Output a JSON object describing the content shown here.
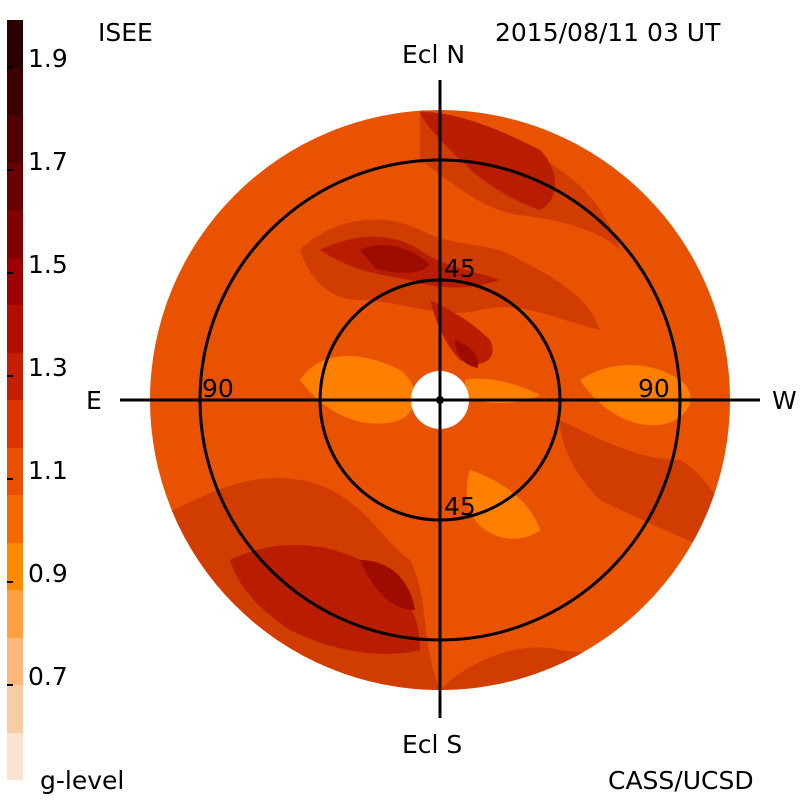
{
  "header": {
    "observatory": "ISEE",
    "timestamp": "2015/08/11 03 UT",
    "credit": "CASS/UCSD",
    "colorbar_title": "g-level"
  },
  "axes": {
    "north": "Ecl N",
    "south": "Ecl S",
    "east": "E",
    "west": "W",
    "ring_inner_top": "45",
    "ring_inner_bottom": "45",
    "ring_outer_left": "90",
    "ring_outer_right": "90"
  },
  "colorbar": {
    "labels": [
      "1.9",
      "1.7",
      "1.5",
      "1.3",
      "1.1",
      "0.9",
      "0.7"
    ],
    "colors": [
      "#2a0000",
      "#3d0000",
      "#520000",
      "#6b0000",
      "#820000",
      "#9c0000",
      "#b30c00",
      "#c81e00",
      "#db3600",
      "#e85000",
      "#f56a00",
      "#ff8a00",
      "#ffa040",
      "#fbb878",
      "#f9cda3",
      "#fbe3cf"
    ]
  },
  "map_colors": {
    "base": "#e85200",
    "mid": "#d13c00",
    "dark": "#b81d00",
    "darker": "#9e0c00",
    "light": "#ff8000",
    "center": "#ffffff"
  }
}
